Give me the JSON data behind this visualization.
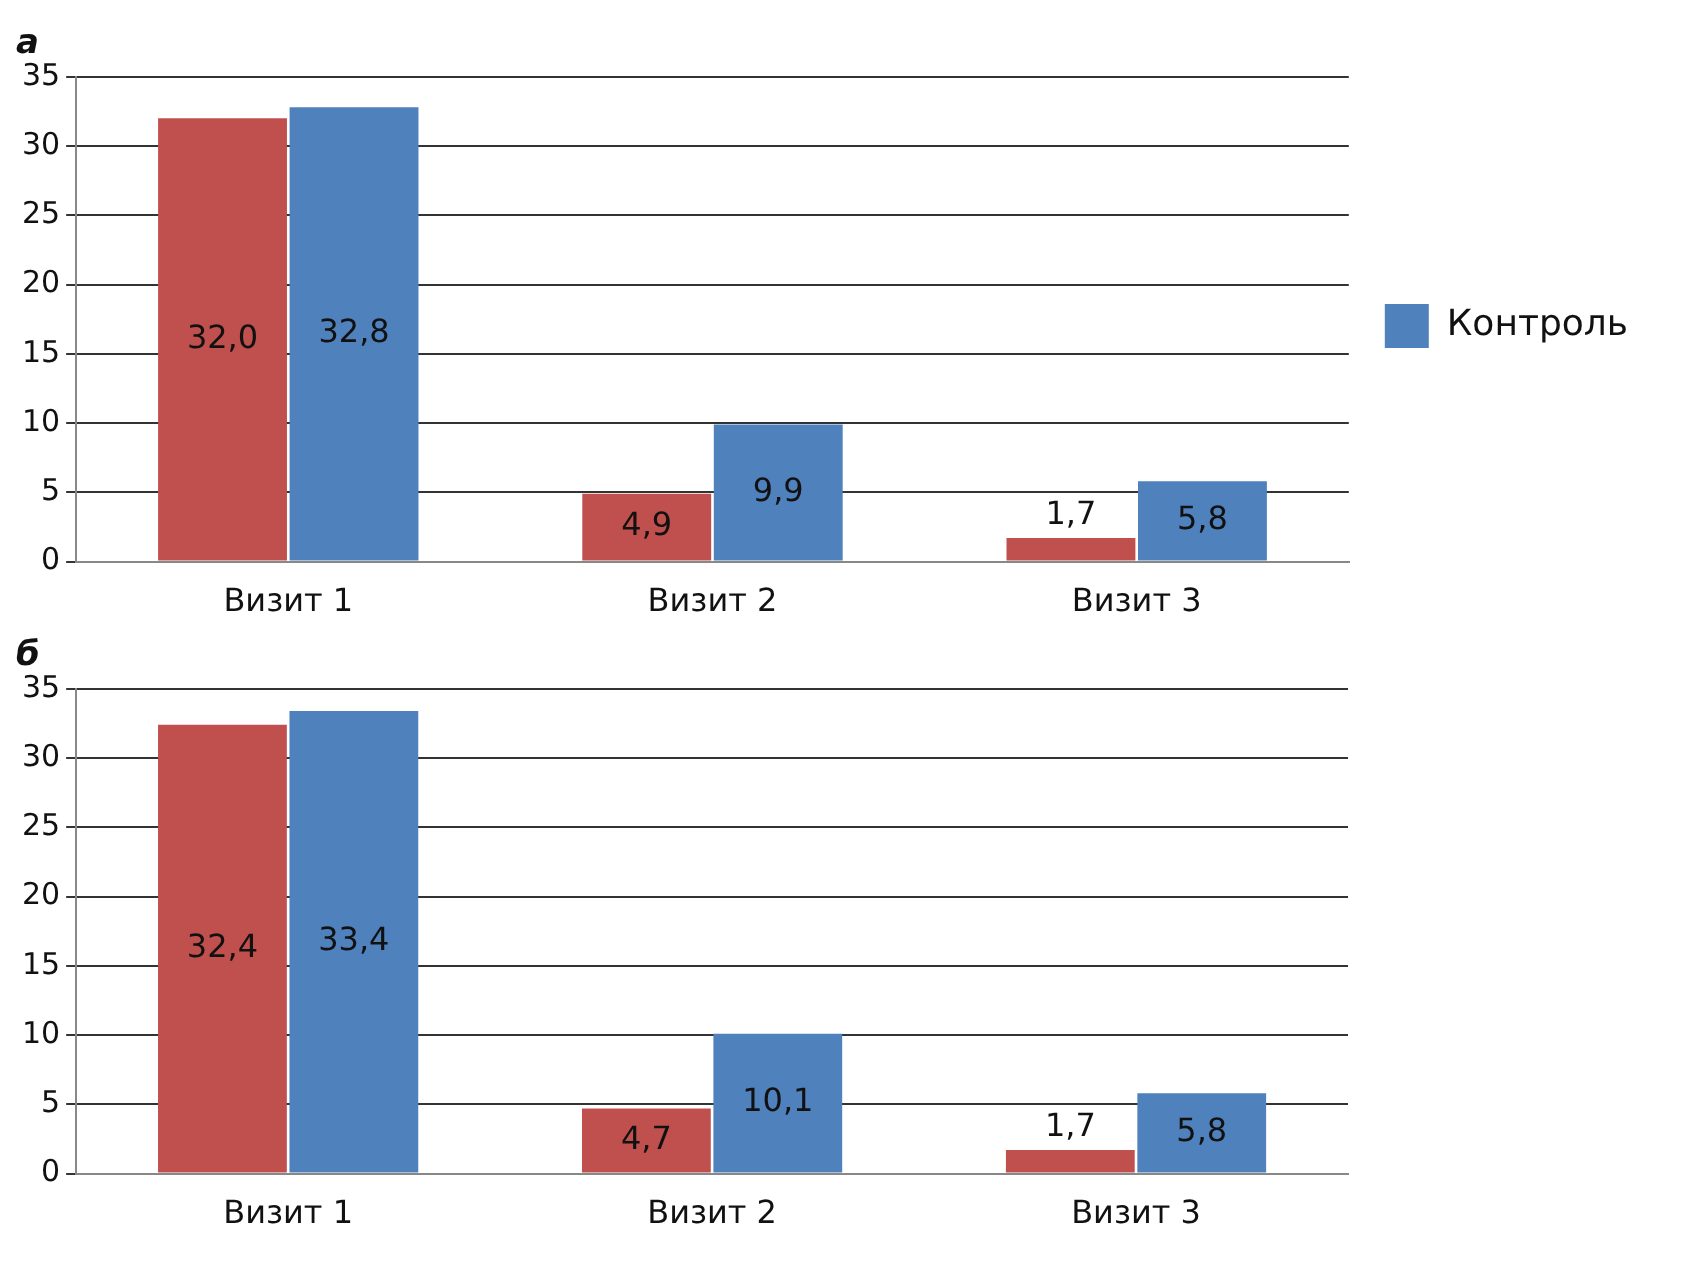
{
  "chart_data": [
    {
      "type": "bar",
      "title": "а",
      "categories": [
        "Визит 1",
        "Визит 2",
        "Визит 3"
      ],
      "series": [
        {
          "color": "#c0504d",
          "values": [
            32.0,
            4.9,
            1.7
          ],
          "value_labels": [
            "32,0",
            "4,9",
            "1,7"
          ]
        },
        {
          "name": "Контроль",
          "color": "#4f81bd",
          "values": [
            32.8,
            9.9,
            5.8
          ],
          "value_labels": [
            "32,8",
            "9,9",
            "5,8"
          ]
        }
      ],
      "ylim": [
        0,
        35
      ],
      "yticks": [
        0,
        5,
        10,
        15,
        20,
        25,
        30,
        35
      ],
      "grid": "y",
      "legend": "right"
    },
    {
      "type": "bar",
      "title": "б",
      "categories": [
        "Визит 1",
        "Визит 2",
        "Визит 3"
      ],
      "series": [
        {
          "color": "#c0504d",
          "values": [
            32.4,
            4.7,
            1.7
          ],
          "value_labels": [
            "32,4",
            "4,7",
            "1,7"
          ]
        },
        {
          "color": "#4f81bd",
          "values": [
            33.4,
            10.1,
            5.8
          ],
          "value_labels": [
            "33,4",
            "10,1",
            "5,8"
          ]
        }
      ],
      "ylim": [
        0,
        35
      ],
      "yticks": [
        0,
        5,
        10,
        15,
        20,
        25,
        30,
        35
      ],
      "grid": "y"
    }
  ]
}
